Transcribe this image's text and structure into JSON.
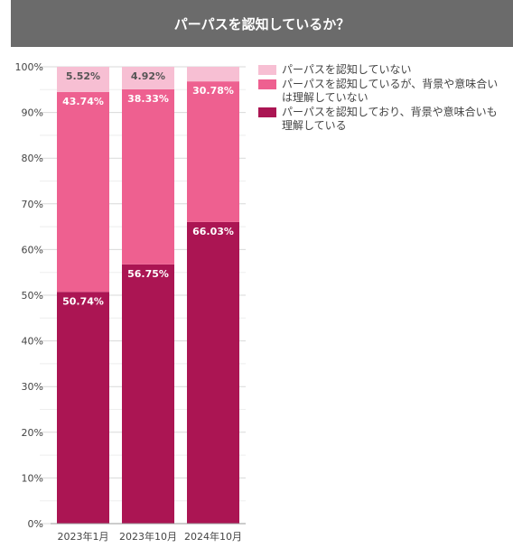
{
  "title": "パーパスを認知しているか？",
  "chart_data": {
    "type": "bar",
    "stacked": true,
    "categories": [
      "2023年1月",
      "2023年10月",
      "2024年10月"
    ],
    "series": [
      {
        "name": "パーパスを認知しており、背景や意味合いも理解している",
        "color": "#ab1553",
        "label_color": "#ffffff",
        "values": [
          50.74,
          56.75,
          66.03
        ],
        "labels": [
          "50.74%",
          "56.75%",
          "66.03%"
        ]
      },
      {
        "name": "パーパスを認知しているが、背景や意味合いは理解していない",
        "color": "#ee6090",
        "label_color": "#ffffff",
        "values": [
          43.74,
          38.33,
          30.78
        ],
        "labels": [
          "43.74%",
          "38.33%",
          "30.78%"
        ]
      },
      {
        "name": "パーパスを認知していない",
        "color": "#f7bfd3",
        "label_color": "#555555",
        "values": [
          5.52,
          4.92,
          3.19
        ],
        "labels": [
          "5.52%",
          "4.92%",
          ""
        ]
      }
    ],
    "yticks": [
      "0%",
      "10%",
      "20%",
      "30%",
      "40%",
      "50%",
      "60%",
      "70%",
      "80%",
      "90%",
      "100%"
    ],
    "ylim": [
      0,
      100
    ],
    "grid": true,
    "legend_position": "right"
  },
  "legend": {
    "items": [
      {
        "label": "パーパスを認知していない",
        "color": "#f7bfd3"
      },
      {
        "label": "パーパスを認知しているが、背景や意味合いは理解していない",
        "color": "#ee6090"
      },
      {
        "label": "パーパスを認知しており、背景や意味合いも理解している",
        "color": "#ab1553"
      }
    ]
  }
}
